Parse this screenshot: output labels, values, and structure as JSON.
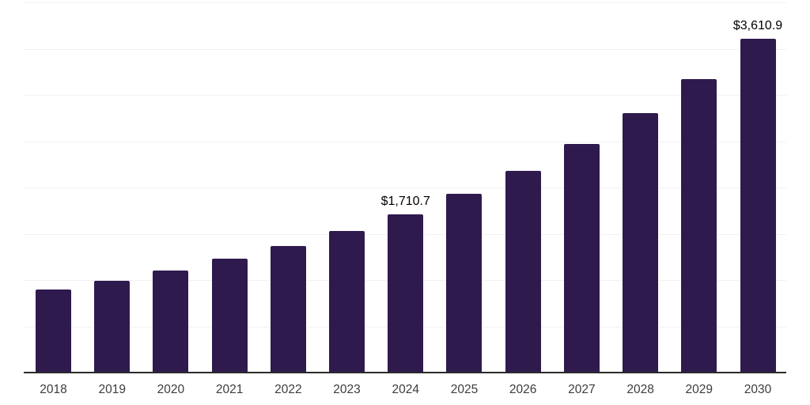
{
  "chart_data": {
    "type": "bar",
    "title": "",
    "xlabel": "",
    "ylabel": "",
    "categories": [
      "2018",
      "2019",
      "2020",
      "2021",
      "2022",
      "2023",
      "2024",
      "2025",
      "2026",
      "2027",
      "2028",
      "2029",
      "2030"
    ],
    "values": [
      895,
      995,
      1100,
      1230,
      1365,
      1530,
      1710.7,
      1935,
      2180,
      2470,
      2800,
      3175,
      3610.9
    ],
    "data_labels": [
      "",
      "",
      "",
      "",
      "",
      "",
      "$1,710.7",
      "",
      "",
      "",
      "",
      "",
      "$3,610.9"
    ],
    "ylim": [
      0,
      4000
    ],
    "grid_interval": 500,
    "grid": "horizontal",
    "legend": "none",
    "y_axis_labels": "none"
  },
  "colors": {
    "bar": "#2f1a4e",
    "grid_line": "#f1f1f1",
    "axis_line": "#2b2b2b",
    "data_label": "#000000",
    "tick_label": "#3c3c3c",
    "background": "#ffffff"
  }
}
